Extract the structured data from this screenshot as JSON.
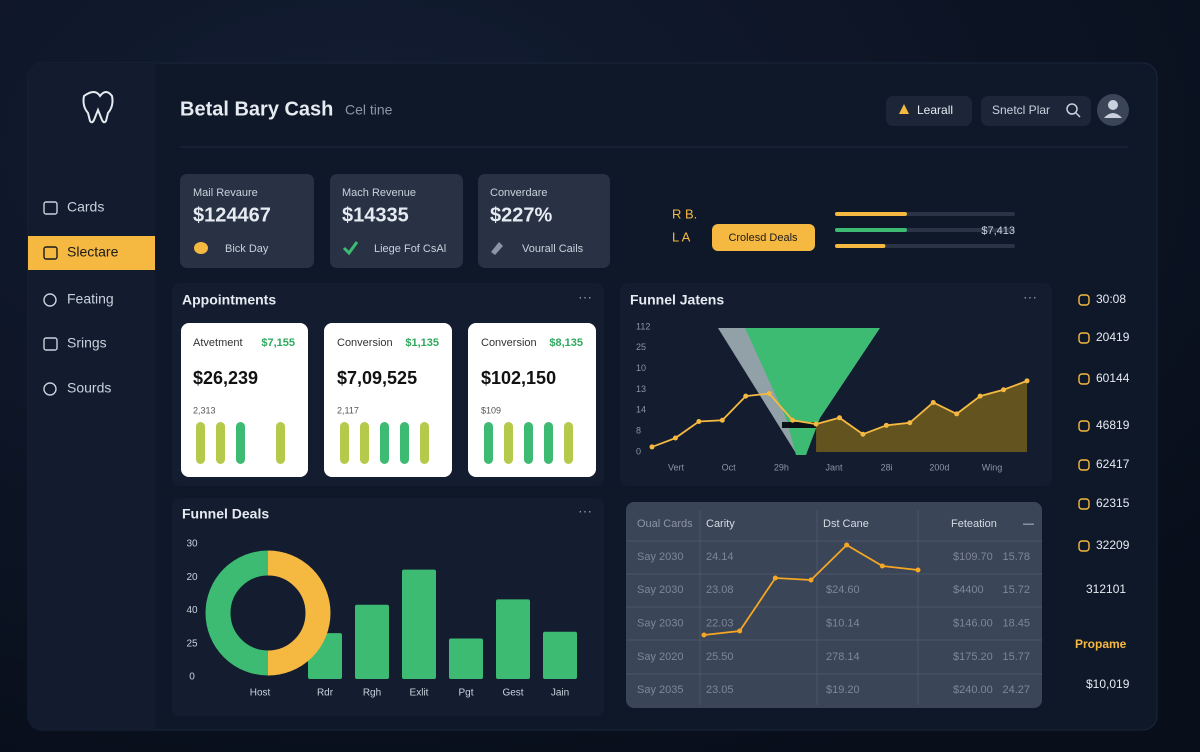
{
  "sidebar": {
    "nav": [
      "Cards",
      "Slectare",
      "Feating",
      "Srings",
      "Sourds"
    ],
    "active": 1
  },
  "header": {
    "title": "Betal Bary Cash",
    "subtitle": "Cel tine",
    "button": "Learall",
    "search": "Snetcl Plar"
  },
  "kpis": [
    {
      "label": "Mail Revaure",
      "value": "$124467",
      "note": "Bick Day"
    },
    {
      "label": "Mach Revenue",
      "value": "$14335",
      "note": "Liege Fof CsAl"
    },
    {
      "label": "Converdare",
      "value": "$227%",
      "note": "Vourall Cails"
    }
  ],
  "deals_widget": {
    "labels": [
      "R B.",
      "L A"
    ],
    "button": "Crolesd Deals",
    "value": "$7,413",
    "progress": [
      {
        "color": "#f5b942",
        "value": 40
      },
      {
        "color": "#3dbb73",
        "value": 40
      },
      {
        "color": "#f5b942",
        "value": 28
      }
    ]
  },
  "appointments": {
    "title": "Appointments",
    "cards": [
      {
        "label": "Atvetment",
        "badge": "$7,155",
        "value": "$26,239",
        "note": "2,313",
        "bars": [
          10,
          10,
          10,
          null,
          10
        ],
        "colors": [
          "#b5c94a",
          "#b5c94a",
          "#3dbb73",
          null,
          "#b5c94a"
        ],
        "ylim": [
          0,
          10
        ]
      },
      {
        "label": "Conversion",
        "badge": "$1,135",
        "value": "$7,09,525",
        "note": "2,117",
        "bars": [
          10,
          10,
          10,
          10,
          10
        ],
        "colors": [
          "#b5c94a",
          "#b5c94a",
          "#3dbb73",
          "#3dbb73",
          "#b5c94a"
        ],
        "ylim": [
          0,
          10
        ]
      },
      {
        "label": "Conversion",
        "badge": "$8,135",
        "value": "$102,150",
        "note": "$109",
        "bars": [
          10,
          10,
          10,
          10,
          10
        ],
        "colors": [
          "#3dbb73",
          "#b5c94a",
          "#3dbb73",
          "#3dbb73",
          "#b5c94a"
        ],
        "ylim": [
          0,
          10
        ]
      }
    ]
  },
  "chart_data": [
    {
      "type": "line",
      "title": "Funnel Jatens",
      "y_labels": [
        "112",
        "25",
        "10",
        "13",
        "14",
        "8",
        "0"
      ],
      "x_labels": [
        "Vert",
        "Oct",
        "29h",
        "Jant",
        "28i",
        "200d",
        "Wing"
      ],
      "values": [
        4,
        11,
        24,
        25,
        44,
        46,
        25,
        22,
        27,
        14,
        21,
        23,
        39,
        30,
        44,
        49,
        56
      ],
      "ylim": [
        0,
        100
      ],
      "color": "#f5b942",
      "area_color": "#6b5a1e"
    },
    {
      "type": "bar",
      "title": "Funnel Deals",
      "y_labels": [
        "30",
        "20",
        "40",
        "25",
        "0"
      ],
      "categories": [
        "Host",
        "Rdr",
        "Rgh",
        "Exlit",
        "Pgt",
        "Gest",
        "Jain"
      ],
      "values": [
        null,
        34,
        55,
        81,
        30,
        59,
        35
      ],
      "ylim": [
        0,
        100
      ],
      "color": "#3dbb73"
    },
    {
      "type": "pie",
      "values": [
        50,
        50
      ],
      "colors": [
        "#f5b942",
        "#3dbb73"
      ]
    },
    {
      "type": "line",
      "values": [
        5,
        9,
        62,
        60,
        95,
        74,
        70
      ],
      "ylim": [
        0,
        100
      ],
      "color": "#f5a623"
    }
  ],
  "table": {
    "headers": [
      "Oual Cards",
      "Carity",
      "Dst Cane",
      "Feteation",
      "—"
    ],
    "rows": [
      [
        "Say 2030",
        "24.14",
        null,
        "$109.70",
        "15.78"
      ],
      [
        "Say 2030",
        "23.08",
        "$24.60",
        "$4400",
        "15.72"
      ],
      [
        "Say 2030",
        "22.03",
        "$10.14",
        "$146.00",
        "18.45"
      ],
      [
        "Say 2020",
        "25.50",
        "278.14",
        "$175.20",
        "15.77"
      ],
      [
        "Say 2035",
        "23.05",
        "$19.20",
        "$240.00",
        "24.27"
      ]
    ]
  },
  "right_list": [
    "30:08",
    "20419",
    "60144",
    "46819",
    "62417",
    "62315",
    "32209",
    "312101",
    "Propame",
    "$10,019"
  ]
}
